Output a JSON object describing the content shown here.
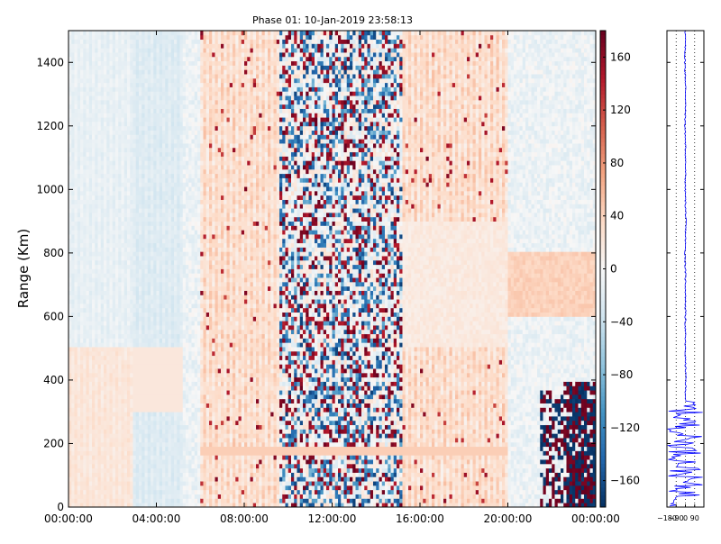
{
  "chart_data": [
    {
      "type": "heatmap",
      "title": "Phase 01: 10-Jan-2019 23:58:13",
      "xlabel": "",
      "ylabel": "Range (Km)",
      "x_ticks": [
        "00:00:00",
        "04:00:00",
        "08:00:00",
        "12:00:00",
        "16:00:00",
        "20:00:00",
        "00:00:00"
      ],
      "x_range_hours": [
        0,
        24
      ],
      "y_ticks": [
        0,
        200,
        400,
        600,
        800,
        1000,
        1200,
        1400
      ],
      "ylim": [
        0,
        1500
      ],
      "colorbar": {
        "ticks": [
          160,
          120,
          80,
          40,
          0,
          -40,
          -80,
          -120,
          -160
        ],
        "range": [
          -180,
          180
        ],
        "colormap": [
          "#053061",
          "#2166ac",
          "#4393c3",
          "#92c5de",
          "#d1e5f0",
          "#f7f7f7",
          "#fddbc7",
          "#f4a582",
          "#d6604d",
          "#b2182b",
          "#67001f"
        ]
      },
      "features": [
        {
          "name": "noisy_band",
          "x_hours": [
            9.6,
            15.2
          ],
          "y": [
            0,
            1500
          ]
        },
        {
          "name": "strong_echo",
          "x_hours": [
            21.5,
            24
          ],
          "y": [
            0,
            400
          ]
        },
        {
          "name": "reddish_drift",
          "x_hours": [
            6,
            20
          ],
          "y": [
            0,
            1500
          ]
        }
      ]
    },
    {
      "type": "line",
      "title": "",
      "xlabel": "",
      "ylabel": "",
      "x_ticks": [
        -180,
        -90,
        0,
        90
      ],
      "x_tick_labels": [
        "−180",
        "−90",
        "0",
        "90"
      ],
      "xlim": [
        -180,
        180
      ],
      "ylim": [
        0,
        1500
      ],
      "series_color": "#0000ff",
      "profile_phase_by_range": [
        [
          1500,
          0
        ],
        [
          1400,
          -5
        ],
        [
          1300,
          3
        ],
        [
          1200,
          -4
        ],
        [
          1100,
          2
        ],
        [
          1000,
          -2
        ],
        [
          900,
          4
        ],
        [
          800,
          -3
        ],
        [
          700,
          1
        ],
        [
          600,
          0
        ],
        [
          500,
          -2
        ],
        [
          400,
          3
        ],
        [
          330,
          0
        ],
        [
          310,
          60
        ],
        [
          290,
          -120
        ],
        [
          270,
          150
        ],
        [
          250,
          -170
        ],
        [
          230,
          90
        ],
        [
          210,
          -150
        ],
        [
          190,
          120
        ],
        [
          170,
          -100
        ],
        [
          150,
          170
        ],
        [
          130,
          -160
        ],
        [
          110,
          80
        ],
        [
          90,
          -170
        ],
        [
          70,
          150
        ],
        [
          50,
          -120
        ],
        [
          30,
          160
        ],
        [
          10,
          -90
        ],
        [
          0,
          60
        ]
      ]
    }
  ]
}
